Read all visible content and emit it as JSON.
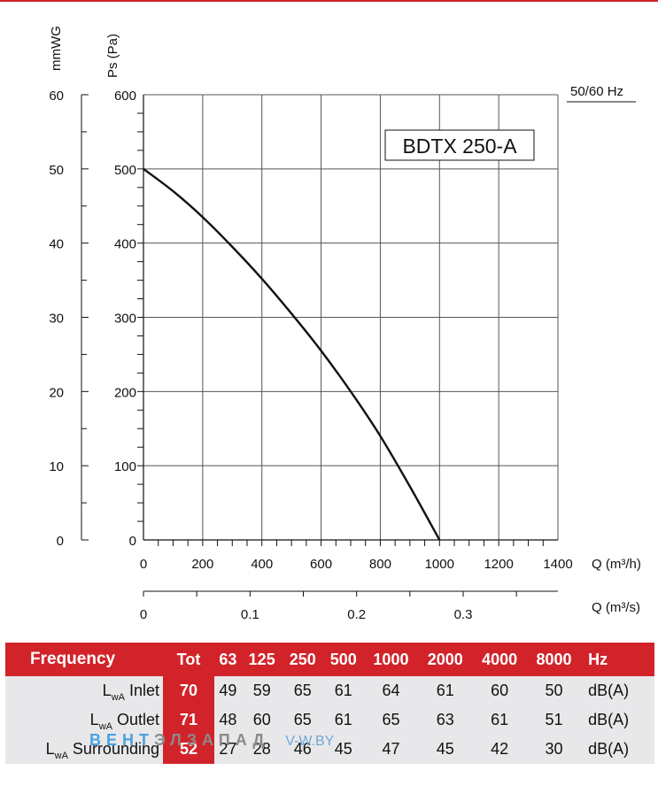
{
  "chart_data": {
    "type": "line",
    "title": "BDTX 250-A",
    "frequency_label": "50/60 Hz",
    "ylabel_primary": "Ps (Pa)",
    "ylabel_secondary": "mmWG",
    "xlabel_primary": "Q (m³/h)",
    "xlabel_secondary": "Q (m³/s)",
    "xlim": [
      0,
      1400
    ],
    "ylim": [
      0,
      600
    ],
    "secondary_xlim": [
      0,
      0.3889
    ],
    "secondary_ylim": [
      0,
      60
    ],
    "x_ticks": [
      "0",
      "200",
      "400",
      "600",
      "800",
      "1000",
      "1200",
      "1400"
    ],
    "y_ticks": [
      "0",
      "100",
      "200",
      "300",
      "400",
      "500",
      "600"
    ],
    "secondary_y_ticks": [
      "0",
      "10",
      "20",
      "30",
      "40",
      "50",
      "60"
    ],
    "secondary_x_ticks": [
      "0",
      "0.1",
      "0.2",
      "0.3"
    ],
    "grid": true,
    "series": [
      {
        "x": [
          0,
          100,
          200,
          300,
          400,
          500,
          600,
          700,
          800,
          900,
          1000
        ],
        "y": [
          500,
          470,
          435,
          395,
          352,
          305,
          255,
          200,
          140,
          72,
          0
        ]
      }
    ]
  },
  "table": {
    "header_label": "Frequency",
    "tot_label": "Tot",
    "bands": [
      "63",
      "125",
      "250",
      "500",
      "1000",
      "2000",
      "4000",
      "8000"
    ],
    "unit_label": "Hz",
    "rows": [
      {
        "label_l": "L",
        "label_sub": "wA",
        "label_rest": " Inlet",
        "tot": "70",
        "values": [
          "49",
          "59",
          "65",
          "61",
          "64",
          "61",
          "60",
          "50"
        ],
        "unit": "dB(A)"
      },
      {
        "label_l": "L",
        "label_sub": "wA",
        "label_rest": " Outlet",
        "tot": "71",
        "values": [
          "48",
          "60",
          "65",
          "61",
          "65",
          "63",
          "61",
          "51"
        ],
        "unit": "dB(A)"
      },
      {
        "label_l": "L",
        "label_sub": "wA",
        "label_rest": " Surrounding",
        "tot": "52",
        "values": [
          "27",
          "28",
          "46",
          "45",
          "47",
          "45",
          "42",
          "30"
        ],
        "unit": "dB(A)"
      }
    ]
  },
  "watermark": {
    "text_blue": "ВЕНТ",
    "text_gray": "ЭЛЗАПАД",
    "url": "V-W.BY"
  }
}
